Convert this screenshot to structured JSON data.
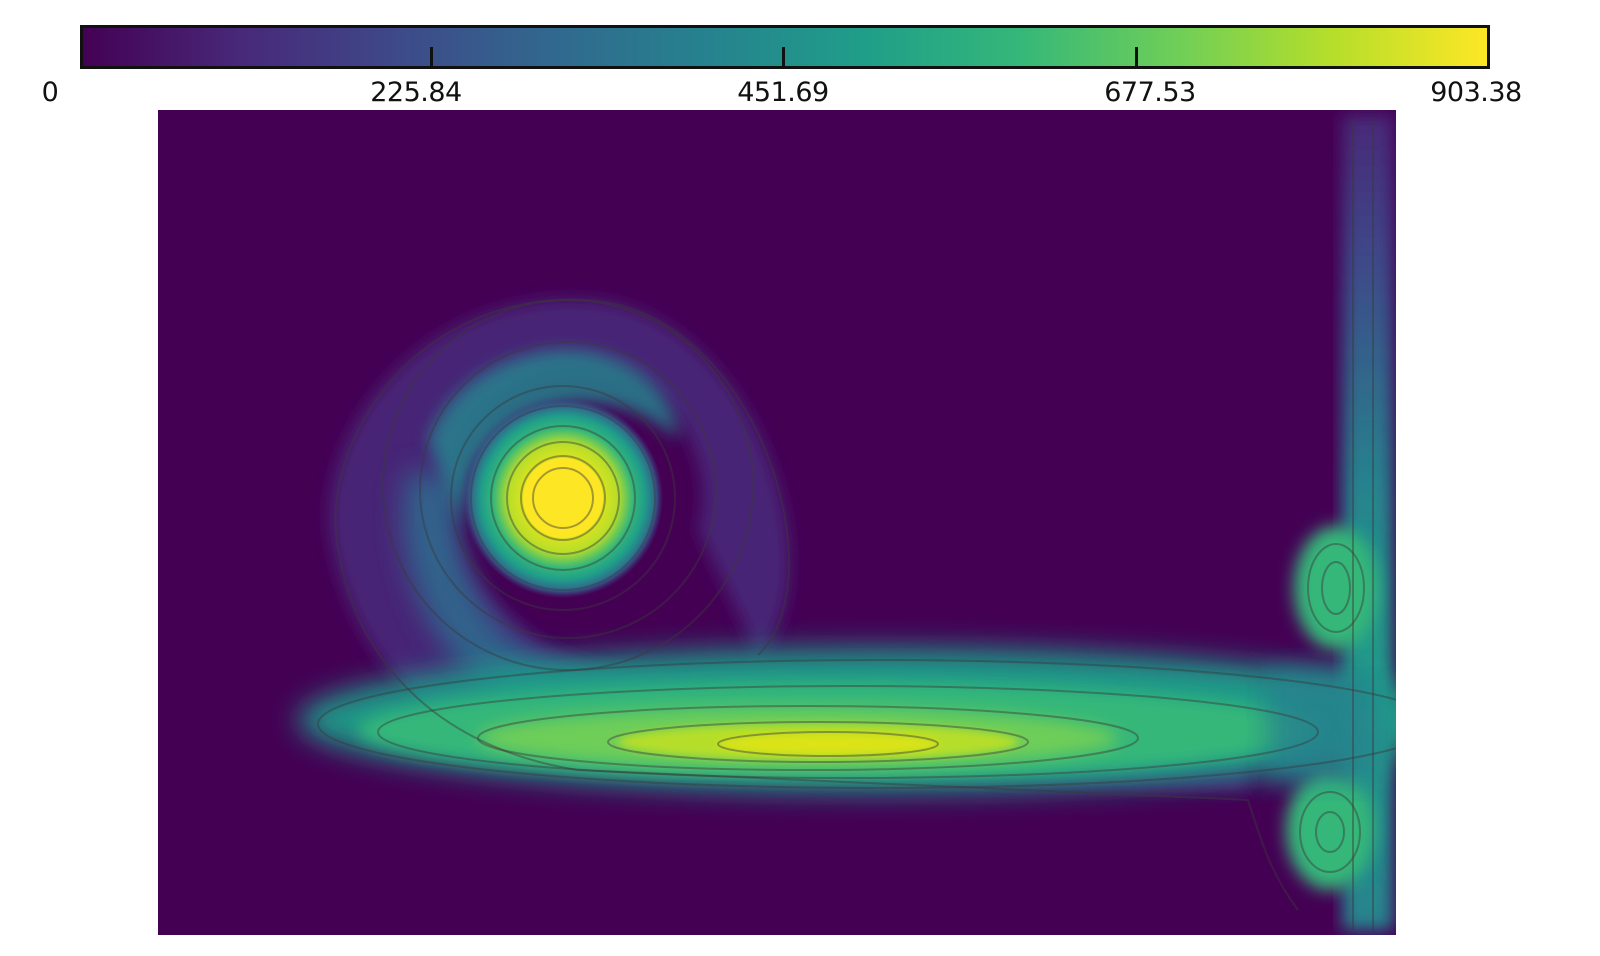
{
  "chart_data": {
    "type": "heatmap",
    "colormap": "viridis",
    "colorbar": {
      "orientation": "horizontal",
      "placement": "top",
      "min": 0,
      "max": 903.38,
      "tick_labels": [
        "0",
        "225.84",
        "451.69",
        "677.53",
        "903.38"
      ],
      "tick_values": [
        0,
        225.84,
        451.69,
        677.53,
        903.38
      ]
    },
    "contours": true,
    "features": [
      {
        "kind": "vortex-core",
        "peak_value": 903.38
      },
      {
        "kind": "horizontal-band",
        "peak_value": 860
      },
      {
        "kind": "vertical-wall-jet",
        "peak_value": 600
      },
      {
        "kind": "wall-blob-upper",
        "peak_value": 640
      },
      {
        "kind": "wall-blob-lower",
        "peak_value": 620
      }
    ],
    "background_value": 0
  },
  "colors": {
    "viridis": [
      "#440154",
      "#482878",
      "#3e4989",
      "#31688e",
      "#26828e",
      "#1f9e89",
      "#35b779",
      "#6ece58",
      "#b5de2b",
      "#fde725"
    ]
  }
}
